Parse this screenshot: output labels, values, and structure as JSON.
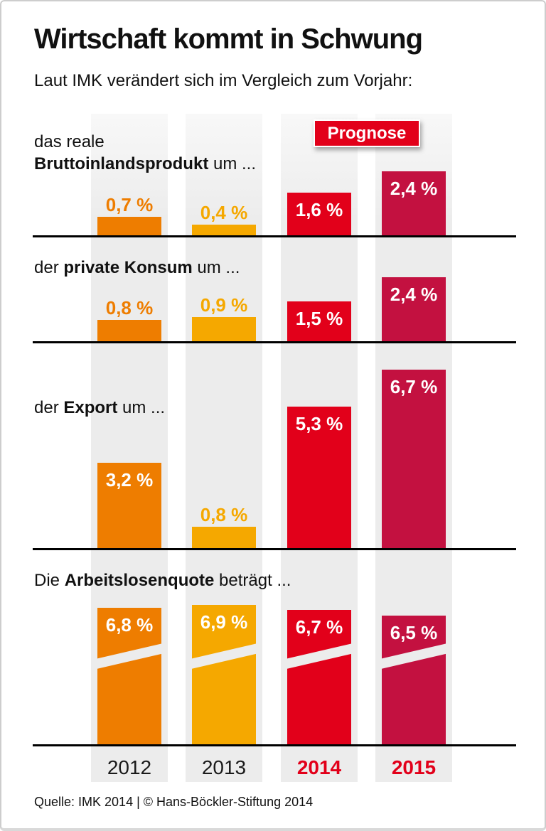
{
  "page": {
    "title": "Wirtschaft kommt in Schwung",
    "subtitle": "Laut IMK verändert sich im Vergleich zum Vorjahr:",
    "badge": "Prognose",
    "source": "Quelle: IMK 2014 | © Hans-Böckler-Stiftung 2014"
  },
  "colors": {
    "column_colors": [
      "#EE7D00",
      "#F5A800",
      "#E2001A",
      "#C31140"
    ],
    "year_label_colors": [
      "#1A1A1A",
      "#1A1A1A",
      "#E2001A",
      "#E2001A"
    ],
    "band": "#ECECEC",
    "axis": "#000000",
    "badge_bg": "#E2001A",
    "badge_text": "#FFFFFF",
    "text": "#1A1A1A"
  },
  "chart_data": {
    "type": "bar",
    "categories": [
      "2012",
      "2013",
      "2014",
      "2015"
    ],
    "forecast_categories": [
      "2014",
      "2015"
    ],
    "unit": "%",
    "title": "Wirtschaft kommt in Schwung",
    "subtitle": "Laut IMK verändert sich im Vergleich zum Vorjahr:",
    "legend": "Prognose",
    "grid": false,
    "sections": [
      {
        "label_prefix": "das reale",
        "wrap_after_prefix": true,
        "label_bold": "Bruttoinlandsprodukt",
        "label_suffix": " um ...",
        "values": [
          0.7,
          0.4,
          1.6,
          2.4
        ],
        "value_labels": [
          "0,7 %",
          "0,4 %",
          "1,6 %",
          "2,4 %"
        ],
        "axis_break": false
      },
      {
        "label_prefix": "der ",
        "wrap_after_prefix": false,
        "label_bold": "private Konsum",
        "label_suffix": " um ...",
        "values": [
          0.8,
          0.9,
          1.5,
          2.4
        ],
        "value_labels": [
          "0,8 %",
          "0,9 %",
          "1,5 %",
          "2,4 %"
        ],
        "axis_break": false
      },
      {
        "label_prefix": "der ",
        "wrap_after_prefix": false,
        "label_bold": "Export",
        "label_suffix": " um ...",
        "values": [
          3.2,
          0.8,
          5.3,
          6.7
        ],
        "value_labels": [
          "3,2 %",
          "0,8 %",
          "5,3 %",
          "6,7 %"
        ],
        "axis_break": false
      },
      {
        "label_prefix": "Die ",
        "wrap_after_prefix": false,
        "label_bold": "Arbeitslosenquote",
        "label_suffix": " beträgt ...",
        "values": [
          6.8,
          6.9,
          6.7,
          6.5
        ],
        "value_labels": [
          "6,8 %",
          "6,9 %",
          "6,7 %",
          "6,5 %"
        ],
        "axis_break": true
      }
    ]
  }
}
